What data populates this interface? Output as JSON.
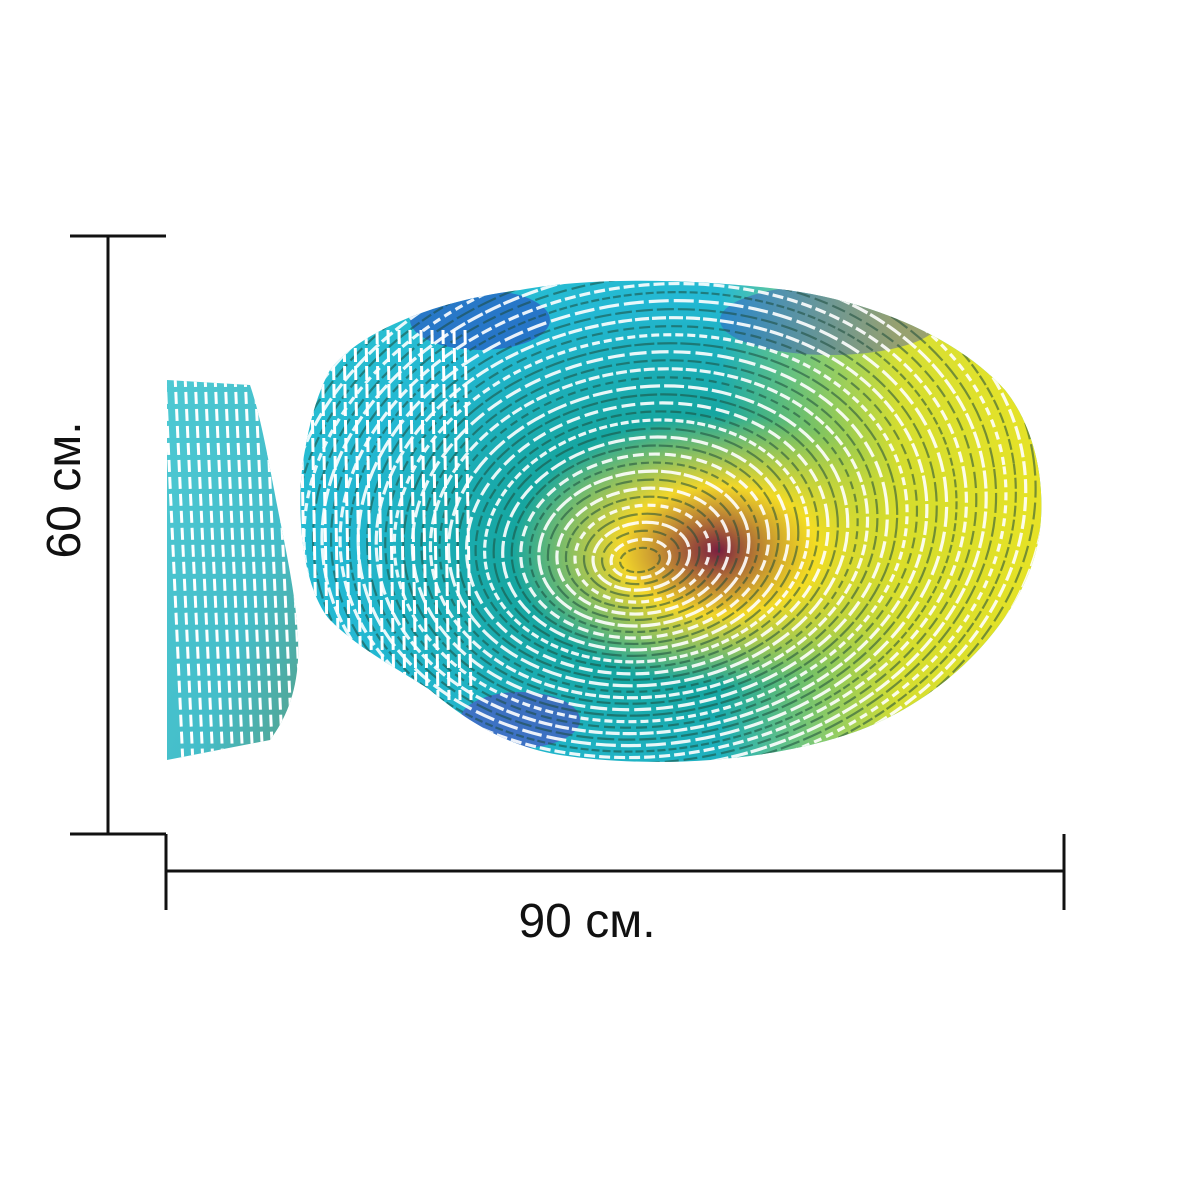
{
  "product": {
    "image_subject": "fingerprint-print",
    "colors": {
      "primary": "#1fb3c4",
      "secondary": "#f5e61a",
      "ridge": "#1b4a3a",
      "accent": "#3a43c8",
      "line": "#111111"
    }
  },
  "dimensions": {
    "height_label": "60 см.",
    "width_label": "90 см."
  }
}
